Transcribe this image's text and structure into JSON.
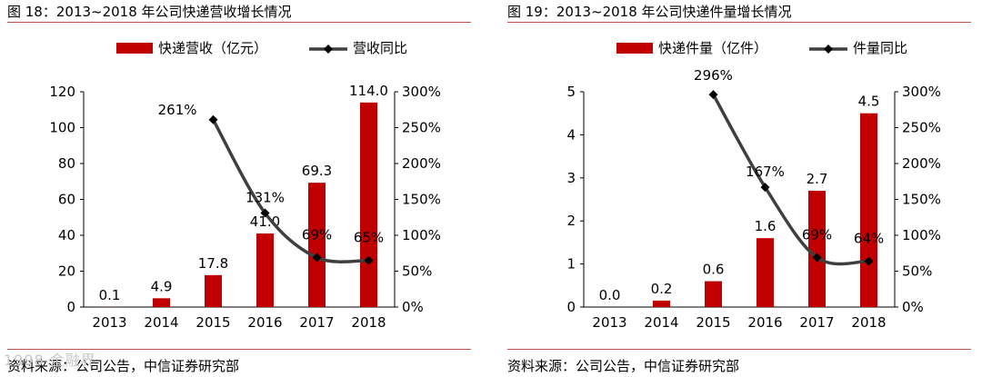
{
  "charts": [
    {
      "figure_title": "图 18：2013~2018 年公司快递营收增长情况",
      "source": "资料来源：公司公告，中信证券研究部",
      "legend": {
        "bar": "快递营收（亿元）",
        "line": "营收同比"
      },
      "categories": [
        "2013",
        "2014",
        "2015",
        "2016",
        "2017",
        "2018"
      ],
      "bar_labels": [
        "0.1",
        "4.9",
        "17.8",
        "41.0",
        "69.3",
        "114.0"
      ],
      "line_labels": [
        "261%",
        "131%",
        "69%",
        "65%"
      ],
      "left_ticks": [
        "0",
        "20",
        "40",
        "60",
        "80",
        "100",
        "120"
      ],
      "right_ticks": [
        "0%",
        "50%",
        "100%",
        "150%",
        "200%",
        "250%",
        "300%"
      ]
    },
    {
      "figure_title": "图 19：2013~2018 年公司快递件量增长情况",
      "source": "资料来源：公司公告，中信证券研究部",
      "legend": {
        "bar": "快递件量（亿件）",
        "line": "件量同比"
      },
      "categories": [
        "2013",
        "2014",
        "2015",
        "2016",
        "2017",
        "2018"
      ],
      "bar_labels": [
        "0.0",
        "0.2",
        "0.6",
        "1.6",
        "2.7",
        "4.5"
      ],
      "line_labels": [
        "296%",
        "167%",
        "69%",
        "64%"
      ],
      "left_ticks": [
        "0",
        "1",
        "2",
        "3",
        "4",
        "5"
      ],
      "right_ticks": [
        "0%",
        "50%",
        "100%",
        "150%",
        "200%",
        "250%",
        "300%"
      ]
    }
  ],
  "chart_data": [
    {
      "type": "bar",
      "categories": [
        "2013",
        "2014",
        "2015",
        "2016",
        "2017",
        "2018"
      ],
      "series": [
        {
          "name": "快递营收（亿元）",
          "type": "bar",
          "axis": "left",
          "values": [
            0.1,
            4.9,
            17.8,
            41.0,
            69.3,
            114.0
          ]
        },
        {
          "name": "营收同比",
          "type": "line",
          "axis": "right",
          "values": [
            null,
            null,
            261,
            131,
            69,
            65
          ]
        }
      ],
      "ylim": [
        0,
        120
      ],
      "y2lim": [
        0,
        300
      ],
      "y2_unit": "%",
      "legend_position": "top"
    },
    {
      "type": "bar",
      "categories": [
        "2013",
        "2014",
        "2015",
        "2016",
        "2017",
        "2018"
      ],
      "series": [
        {
          "name": "快递件量（亿件）",
          "type": "bar",
          "axis": "left",
          "values": [
            0.0,
            0.15,
            0.6,
            1.6,
            2.7,
            4.5
          ]
        },
        {
          "name": "件量同比",
          "type": "line",
          "axis": "right",
          "values": [
            null,
            null,
            296,
            167,
            69,
            64
          ]
        }
      ],
      "ylim": [
        0,
        5
      ],
      "y2lim": [
        0,
        300
      ],
      "y2_unit": "%",
      "legend_position": "top"
    }
  ],
  "colors": {
    "bar": "#c00000",
    "line": "#3f3f3f",
    "rule": "#c0504d"
  },
  "watermark": "1998 金融界"
}
